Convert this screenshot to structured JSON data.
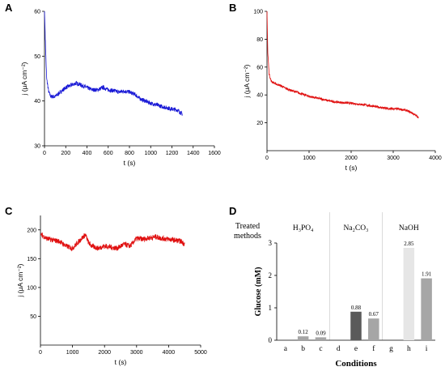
{
  "chart_data": [
    {
      "panel": "A",
      "type": "line",
      "xlabel": "t (s)",
      "ylabel": "j (μA cm⁻²)",
      "xlim": [
        0,
        1600
      ],
      "ylim": [
        30,
        60
      ],
      "xticks": [
        "0",
        "200",
        "400",
        "600",
        "800",
        "1000",
        "1200",
        "1400",
        "1600"
      ],
      "yticks": [
        "30",
        "40",
        "50",
        "60"
      ],
      "color": "#1a1ad6",
      "series": [
        {
          "x": [
            0,
            10,
            20,
            40,
            60,
            100,
            150,
            200,
            250,
            300,
            350,
            400,
            450,
            500,
            550,
            600,
            650,
            700,
            750,
            800,
            850,
            900,
            950,
            1000,
            1050,
            1100,
            1150,
            1200,
            1250,
            1300
          ],
          "y": [
            60,
            52,
            45,
            42,
            41,
            41,
            42,
            43,
            43.5,
            44,
            43.5,
            43,
            42.5,
            42.5,
            43,
            42.5,
            42.3,
            42,
            42.2,
            42,
            41.5,
            40.5,
            40,
            39.5,
            39.2,
            38.8,
            38.5,
            38.2,
            38,
            37
          ]
        }
      ]
    },
    {
      "panel": "B",
      "type": "line",
      "xlabel": "t (s)",
      "ylabel": "j (μA cm⁻²)",
      "xlim": [
        0,
        4000
      ],
      "ylim": [
        0,
        100
      ],
      "xticks": [
        "0",
        "1000",
        "2000",
        "3000",
        "4000"
      ],
      "yticks": [
        "20",
        "40",
        "60",
        "80",
        "100"
      ],
      "color": "#e01010",
      "series": [
        {
          "x": [
            0,
            20,
            50,
            100,
            200,
            300,
            500,
            700,
            1000,
            1300,
            1600,
            2000,
            2300,
            2600,
            2900,
            3100,
            3300,
            3450,
            3600
          ],
          "y": [
            100,
            70,
            55,
            50,
            48,
            47,
            44,
            42,
            39,
            37,
            35,
            34,
            33,
            31.5,
            30,
            30,
            29,
            27,
            24
          ]
        }
      ]
    },
    {
      "panel": "C",
      "type": "line",
      "xlabel": "t (s)",
      "ylabel": "j (μA cm⁻²)",
      "xlim": [
        0,
        5000
      ],
      "ylim": [
        0,
        225
      ],
      "xticks": [
        "0",
        "1000",
        "2000",
        "3000",
        "4000",
        "5000"
      ],
      "yticks": [
        "50",
        "100",
        "150",
        "200"
      ],
      "color": "#e01010",
      "series": [
        {
          "x": [
            0,
            200,
            400,
            600,
            800,
            1000,
            1200,
            1400,
            1500,
            1600,
            1800,
            2000,
            2200,
            2400,
            2600,
            2800,
            3000,
            3200,
            3400,
            3600,
            3800,
            4000,
            4200,
            4400,
            4500
          ],
          "y": [
            192,
            185,
            182,
            180,
            172,
            168,
            180,
            192,
            178,
            172,
            168,
            172,
            170,
            168,
            175,
            172,
            185,
            184,
            186,
            188,
            185,
            184,
            182,
            180,
            175
          ]
        }
      ]
    },
    {
      "panel": "D",
      "type": "bar",
      "xlabel": "Conditions",
      "ylabel": "Glucose (mM)",
      "corner_label": [
        "Treated",
        "methods"
      ],
      "groups": [
        "H₃PO₄",
        "Na₂CO₃",
        "NaOH"
      ],
      "categories": [
        "a",
        "b",
        "c",
        "d",
        "e",
        "f",
        "g",
        "h",
        "i"
      ],
      "values": [
        0,
        0.12,
        0.09,
        0,
        0.88,
        0.67,
        0,
        2.85,
        1.91
      ],
      "labels": [
        "",
        "0.12",
        "0.09",
        "",
        "0.88",
        "0.67",
        "",
        "2.85",
        "1.91"
      ],
      "colors": [
        "#bdbdbd",
        "#a6a6a6",
        "#a6a6a6",
        "#5a5a5a",
        "#5a5a5a",
        "#a6a6a6",
        "#e6e6e6",
        "#e6e6e6",
        "#a6a6a6"
      ],
      "ylim": [
        0,
        3
      ],
      "yticks": [
        "0",
        "1",
        "2",
        "3"
      ]
    }
  ]
}
